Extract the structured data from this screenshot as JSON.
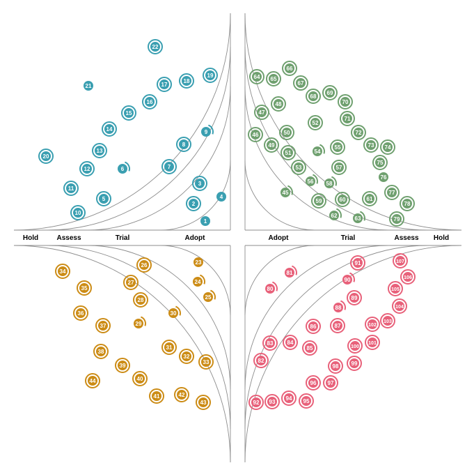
{
  "quadrants": [
    {
      "name": "top-left",
      "color": "#3a9fb1"
    },
    {
      "name": "top-right",
      "color": "#6fa06f"
    },
    {
      "name": "bottom-left",
      "color": "#cc8c16"
    },
    {
      "name": "bottom-right",
      "color": "#e8617a"
    }
  ],
  "rings": [
    "Adopt",
    "Trial",
    "Assess",
    "Hold"
  ],
  "blips": [
    {
      "id": "1",
      "q": 0,
      "style": "dot"
    },
    {
      "id": "2",
      "q": 0,
      "style": "circle"
    },
    {
      "id": "3",
      "q": 0,
      "style": "circle"
    },
    {
      "id": "4",
      "q": 0,
      "style": "dot"
    },
    {
      "id": "5",
      "q": 0,
      "style": "circle"
    },
    {
      "id": "6",
      "q": 0,
      "style": "arc"
    },
    {
      "id": "7",
      "q": 0,
      "style": "circle"
    },
    {
      "id": "8",
      "q": 0,
      "style": "circle"
    },
    {
      "id": "9",
      "q": 0,
      "style": "arc"
    },
    {
      "id": "10",
      "q": 0,
      "style": "circle"
    },
    {
      "id": "11",
      "q": 0,
      "style": "circle"
    },
    {
      "id": "12",
      "q": 0,
      "style": "circle"
    },
    {
      "id": "13",
      "q": 0,
      "style": "circle"
    },
    {
      "id": "14",
      "q": 0,
      "style": "circle"
    },
    {
      "id": "15",
      "q": 0,
      "style": "circle"
    },
    {
      "id": "16",
      "q": 0,
      "style": "circle"
    },
    {
      "id": "17",
      "q": 0,
      "style": "circle"
    },
    {
      "id": "18",
      "q": 0,
      "style": "circle"
    },
    {
      "id": "19",
      "q": 0,
      "style": "circle"
    },
    {
      "id": "20",
      "q": 0,
      "style": "circle"
    },
    {
      "id": "21",
      "q": 0,
      "style": "dot"
    },
    {
      "id": "22",
      "q": 0,
      "style": "circle"
    },
    {
      "id": "45",
      "q": 1,
      "style": "arc"
    },
    {
      "id": "46",
      "q": 1,
      "style": "circle"
    },
    {
      "id": "47",
      "q": 1,
      "style": "circle"
    },
    {
      "id": "48",
      "q": 1,
      "style": "circle"
    },
    {
      "id": "49",
      "q": 1,
      "style": "circle"
    },
    {
      "id": "50",
      "q": 1,
      "style": "circle"
    },
    {
      "id": "51",
      "q": 1,
      "style": "circle"
    },
    {
      "id": "52",
      "q": 1,
      "style": "circle"
    },
    {
      "id": "53",
      "q": 1,
      "style": "circle"
    },
    {
      "id": "54",
      "q": 1,
      "style": "arc"
    },
    {
      "id": "55",
      "q": 1,
      "style": "circle"
    },
    {
      "id": "56",
      "q": 1,
      "style": "arc"
    },
    {
      "id": "57",
      "q": 1,
      "style": "circle"
    },
    {
      "id": "58",
      "q": 1,
      "style": "arc"
    },
    {
      "id": "59",
      "q": 1,
      "style": "circle"
    },
    {
      "id": "60",
      "q": 1,
      "style": "circle"
    },
    {
      "id": "61",
      "q": 1,
      "style": "circle"
    },
    {
      "id": "62",
      "q": 1,
      "style": "arc"
    },
    {
      "id": "63",
      "q": 1,
      "style": "arc"
    },
    {
      "id": "64",
      "q": 1,
      "style": "circle"
    },
    {
      "id": "65",
      "q": 1,
      "style": "circle"
    },
    {
      "id": "66",
      "q": 1,
      "style": "circle"
    },
    {
      "id": "67",
      "q": 1,
      "style": "circle"
    },
    {
      "id": "68",
      "q": 1,
      "style": "circle"
    },
    {
      "id": "69",
      "q": 1,
      "style": "circle"
    },
    {
      "id": "70",
      "q": 1,
      "style": "circle"
    },
    {
      "id": "71",
      "q": 1,
      "style": "circle"
    },
    {
      "id": "72",
      "q": 1,
      "style": "circle"
    },
    {
      "id": "73",
      "q": 1,
      "style": "circle"
    },
    {
      "id": "74",
      "q": 1,
      "style": "circle"
    },
    {
      "id": "75",
      "q": 1,
      "style": "circle"
    },
    {
      "id": "76",
      "q": 1,
      "style": "dot"
    },
    {
      "id": "77",
      "q": 1,
      "style": "circle"
    },
    {
      "id": "78",
      "q": 1,
      "style": "circle"
    },
    {
      "id": "79",
      "q": 1,
      "style": "circle"
    },
    {
      "id": "23",
      "q": 2,
      "style": "dot"
    },
    {
      "id": "24",
      "q": 2,
      "style": "arc"
    },
    {
      "id": "25",
      "q": 2,
      "style": "arc"
    },
    {
      "id": "26",
      "q": 2,
      "style": "circle"
    },
    {
      "id": "27",
      "q": 2,
      "style": "circle"
    },
    {
      "id": "28",
      "q": 2,
      "style": "circle"
    },
    {
      "id": "29",
      "q": 2,
      "style": "arc"
    },
    {
      "id": "30",
      "q": 2,
      "style": "arc"
    },
    {
      "id": "31",
      "q": 2,
      "style": "circle"
    },
    {
      "id": "32",
      "q": 2,
      "style": "circle"
    },
    {
      "id": "33",
      "q": 2,
      "style": "circle"
    },
    {
      "id": "34",
      "q": 2,
      "style": "circle"
    },
    {
      "id": "35",
      "q": 2,
      "style": "circle"
    },
    {
      "id": "36",
      "q": 2,
      "style": "circle"
    },
    {
      "id": "37",
      "q": 2,
      "style": "circle"
    },
    {
      "id": "38",
      "q": 2,
      "style": "circle"
    },
    {
      "id": "39",
      "q": 2,
      "style": "circle"
    },
    {
      "id": "40",
      "q": 2,
      "style": "circle"
    },
    {
      "id": "41",
      "q": 2,
      "style": "circle"
    },
    {
      "id": "42",
      "q": 2,
      "style": "circle"
    },
    {
      "id": "43",
      "q": 2,
      "style": "circle"
    },
    {
      "id": "44",
      "q": 2,
      "style": "circle"
    },
    {
      "id": "80",
      "q": 3,
      "style": "arc"
    },
    {
      "id": "81",
      "q": 3,
      "style": "arc"
    },
    {
      "id": "82",
      "q": 3,
      "style": "circle"
    },
    {
      "id": "83",
      "q": 3,
      "style": "circle"
    },
    {
      "id": "84",
      "q": 3,
      "style": "circle"
    },
    {
      "id": "85",
      "q": 3,
      "style": "circle"
    },
    {
      "id": "86",
      "q": 3,
      "style": "circle"
    },
    {
      "id": "87",
      "q": 3,
      "style": "circle"
    },
    {
      "id": "88",
      "q": 3,
      "style": "arc"
    },
    {
      "id": "89",
      "q": 3,
      "style": "circle"
    },
    {
      "id": "90",
      "q": 3,
      "style": "arc"
    },
    {
      "id": "91",
      "q": 3,
      "style": "circle"
    },
    {
      "id": "92",
      "q": 3,
      "style": "circle"
    },
    {
      "id": "93",
      "q": 3,
      "style": "circle"
    },
    {
      "id": "94",
      "q": 3,
      "style": "circle"
    },
    {
      "id": "95",
      "q": 3,
      "style": "circle"
    },
    {
      "id": "96",
      "q": 3,
      "style": "circle"
    },
    {
      "id": "97",
      "q": 3,
      "style": "circle"
    },
    {
      "id": "98",
      "q": 3,
      "style": "circle"
    },
    {
      "id": "99",
      "q": 3,
      "style": "circle"
    },
    {
      "id": "100",
      "q": 3,
      "style": "circle"
    },
    {
      "id": "101",
      "q": 3,
      "style": "circle"
    },
    {
      "id": "102",
      "q": 3,
      "style": "circle"
    },
    {
      "id": "103",
      "q": 3,
      "style": "circle"
    },
    {
      "id": "104",
      "q": 3,
      "style": "circle"
    },
    {
      "id": "105",
      "q": 3,
      "style": "circle"
    },
    {
      "id": "106",
      "q": 3,
      "style": "circle"
    },
    {
      "id": "107",
      "q": 3,
      "style": "circle"
    }
  ]
}
